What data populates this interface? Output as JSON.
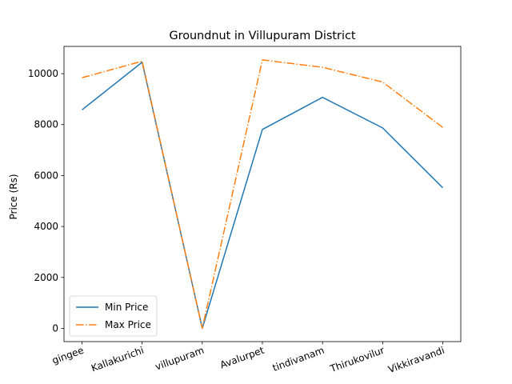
{
  "chart_data": {
    "type": "line",
    "title": "Groundnut in Villupuram District",
    "xlabel": "",
    "ylabel": "Price (Rs)",
    "categories": [
      "gingee",
      "Kallakurichi",
      "villupuram",
      "Avalurpet",
      "tindivanam",
      "Thirukovilur",
      "Vikkiravandi"
    ],
    "series": [
      {
        "name": "Min Price",
        "values": [
          8580,
          10450,
          0,
          7810,
          9070,
          7870,
          5520
        ],
        "color": "#1f77b4",
        "style": "solid"
      },
      {
        "name": "Max Price",
        "values": [
          9840,
          10490,
          0,
          10540,
          10250,
          9670,
          7890
        ],
        "color": "#ff7f0e",
        "style": "dashdot"
      }
    ],
    "ylim": [
      -520,
      11070
    ],
    "yticks": [
      0,
      2000,
      4000,
      6000,
      8000,
      10000
    ],
    "ytick_labels": [
      "0",
      "2000",
      "4000",
      "6000",
      "8000",
      "10000"
    ],
    "grid": false,
    "legend_position": "lower-left",
    "x_tick_rotation": -20
  }
}
